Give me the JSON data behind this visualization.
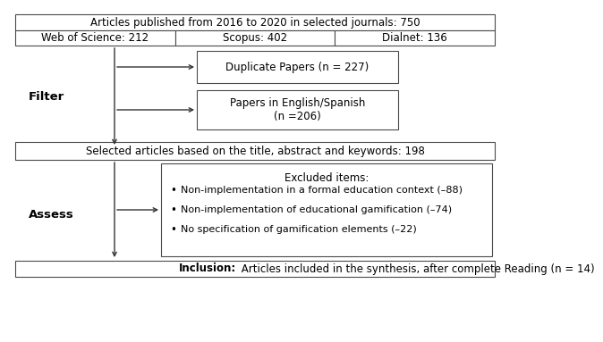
{
  "title_box": "Articles published from 2016 to 2020 in selected journals: 750",
  "subtitle_cells": [
    "Web of Science: 212",
    "Scopus: 402",
    "Dialnet: 136"
  ],
  "filter_label": "Filter",
  "filter_boxes": [
    "Duplicate Papers (n = 227)",
    "Papers in English/Spanish\n(n =206)"
  ],
  "selected_box": "Selected articles based on the title, abstract and keywords: 198",
  "assess_label": "Assess",
  "excluded_title": "Excluded items:",
  "excluded_items": [
    "Non-implementation in a formal education context (–88)",
    "Non-implementation of educational gamification (–74)",
    "No specification of gamification elements (–22)"
  ],
  "inclusion_bold": "Inclusion:",
  "inclusion_text": " Articles included in the synthesis, after complete Reading (n = 14)",
  "bg_color": "#ffffff",
  "box_edge_color": "#4a4a4a",
  "text_color": "#000000",
  "fontsize": 8.5,
  "small_fontsize": 8.0
}
